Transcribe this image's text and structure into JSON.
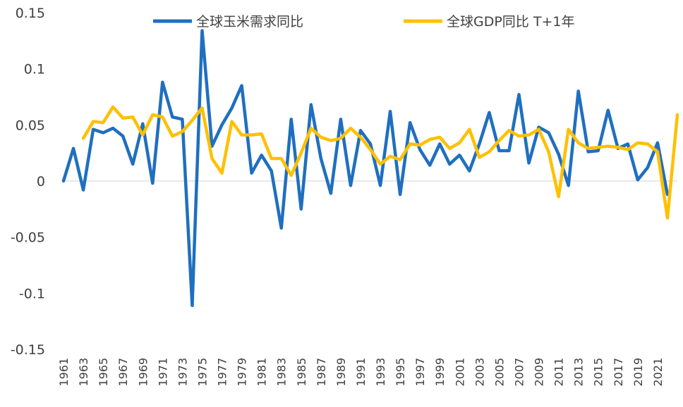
{
  "chart_data": {
    "type": "line",
    "title": "",
    "xlabel": "",
    "ylabel": "",
    "ylim": [
      -0.15,
      0.15
    ],
    "y_ticks": [
      0.15,
      0.1,
      0.05,
      0,
      -0.05,
      -0.1,
      -0.15
    ],
    "y_tick_labels": [
      "0.15",
      "0.1",
      "0.05",
      "0",
      "-0.05",
      "-0.1",
      "-0.15"
    ],
    "x": [
      1961,
      1962,
      1963,
      1964,
      1965,
      1966,
      1967,
      1968,
      1969,
      1970,
      1971,
      1972,
      1973,
      1974,
      1975,
      1976,
      1977,
      1978,
      1979,
      1980,
      1981,
      1982,
      1983,
      1984,
      1985,
      1986,
      1987,
      1988,
      1989,
      1990,
      1991,
      1992,
      1993,
      1994,
      1995,
      1996,
      1997,
      1998,
      1999,
      2000,
      2001,
      2002,
      2003,
      2004,
      2005,
      2006,
      2007,
      2008,
      2009,
      2010,
      2011,
      2012,
      2013,
      2014,
      2015,
      2016,
      2017,
      2018,
      2019,
      2020,
      2021,
      2022,
      2023
    ],
    "x_tick_labels": [
      "1961",
      "1963",
      "1965",
      "1967",
      "1969",
      "1971",
      "1973",
      "1975",
      "1977",
      "1979",
      "1981",
      "1983",
      "1985",
      "1987",
      "1989",
      "1991",
      "1993",
      "1995",
      "1997",
      "1999",
      "2001",
      "2003",
      "2005",
      "2007",
      "2009",
      "2011",
      "2013",
      "2015",
      "2017",
      "2019",
      "2021"
    ],
    "grid": false,
    "legend_position": "top",
    "series": [
      {
        "name": "全球玉米需求同比",
        "color": "#1f6fbf",
        "values": [
          0.0,
          0.029,
          -0.008,
          0.046,
          0.043,
          0.047,
          0.04,
          0.015,
          0.051,
          -0.002,
          0.088,
          0.057,
          0.055,
          -0.111,
          0.134,
          0.031,
          0.05,
          0.065,
          0.085,
          0.007,
          0.023,
          0.009,
          -0.042,
          0.055,
          -0.025,
          0.068,
          0.02,
          -0.011,
          0.055,
          -0.004,
          0.045,
          0.033,
          -0.004,
          0.062,
          -0.012,
          0.052,
          0.028,
          0.014,
          0.033,
          0.015,
          0.023,
          0.009,
          0.033,
          0.061,
          0.027,
          0.027,
          0.077,
          0.016,
          0.048,
          0.043,
          0.024,
          -0.004,
          0.08,
          0.026,
          0.027,
          0.063,
          0.029,
          0.033,
          0.001,
          0.012,
          0.034,
          -0.012,
          null
        ]
      },
      {
        "name": "全球GDP同比 T+1年",
        "color": "#ffc000",
        "values": [
          null,
          null,
          0.038,
          0.053,
          0.052,
          0.066,
          0.056,
          0.057,
          0.041,
          0.059,
          0.057,
          0.04,
          0.044,
          0.054,
          0.065,
          0.02,
          0.007,
          0.053,
          0.041,
          0.041,
          0.042,
          0.02,
          0.02,
          0.005,
          0.025,
          0.047,
          0.039,
          0.036,
          0.038,
          0.047,
          0.039,
          0.028,
          0.015,
          0.022,
          0.019,
          0.033,
          0.032,
          0.037,
          0.039,
          0.029,
          0.034,
          0.046,
          0.021,
          0.026,
          0.036,
          0.045,
          0.04,
          0.041,
          0.046,
          0.026,
          -0.014,
          0.046,
          0.034,
          0.029,
          0.03,
          0.031,
          0.03,
          0.028,
          0.034,
          0.033,
          0.026,
          -0.033,
          0.059
        ]
      }
    ]
  }
}
